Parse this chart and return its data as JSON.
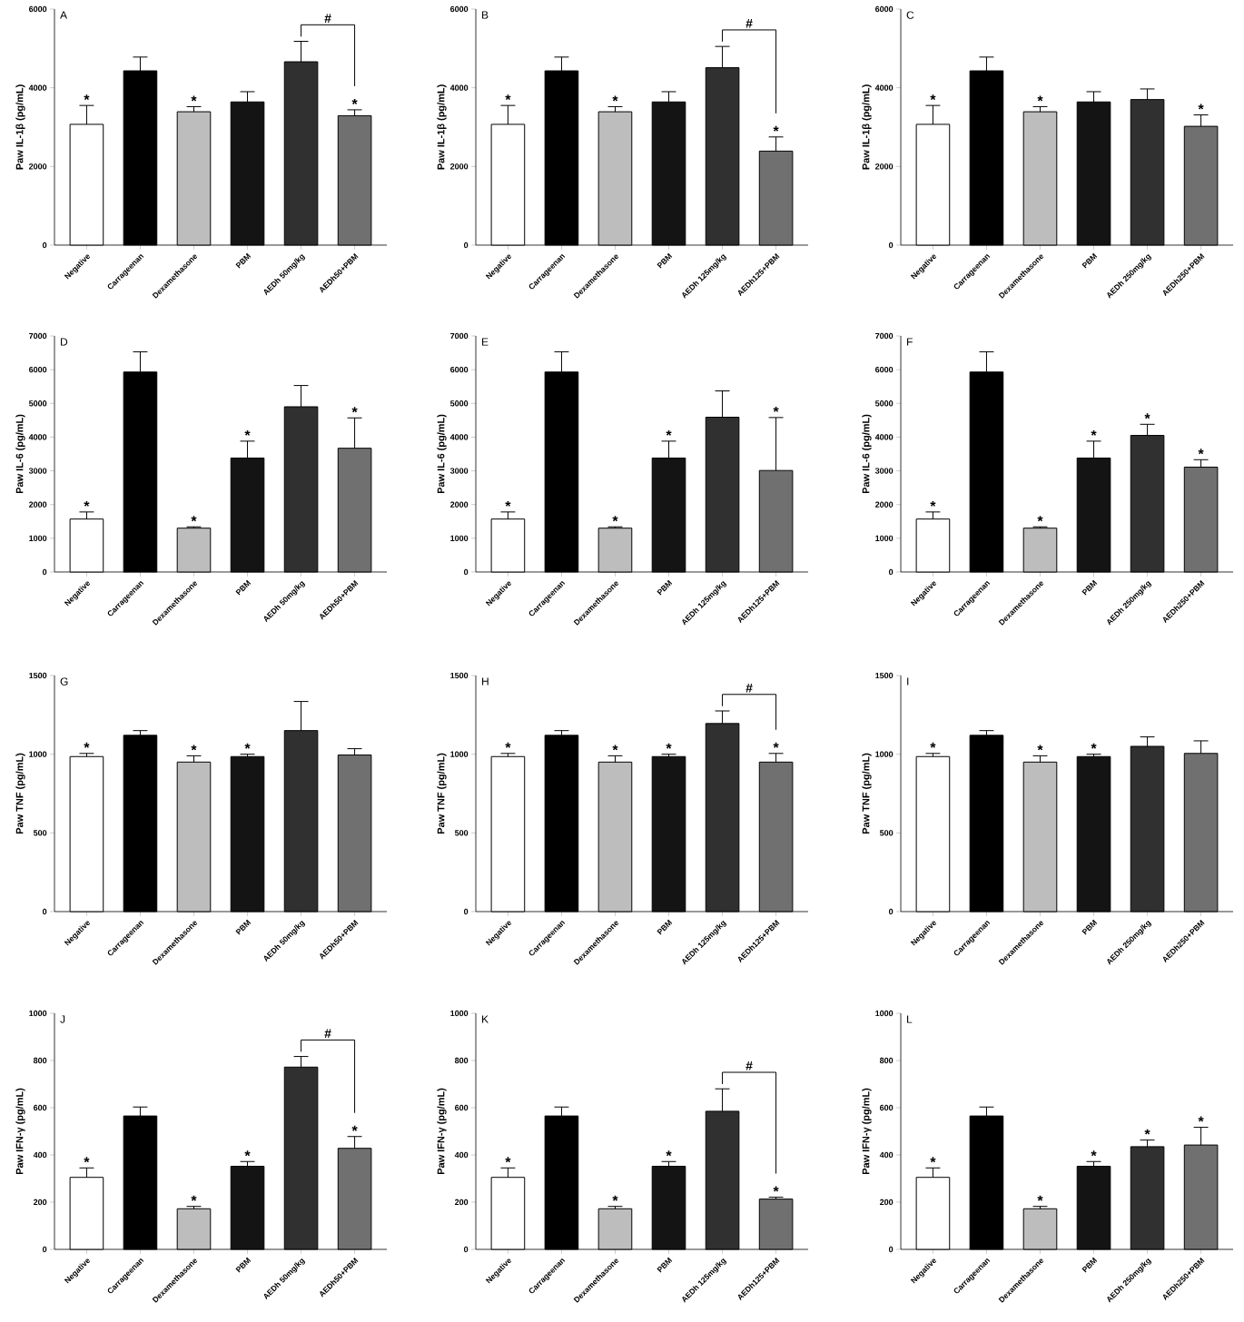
{
  "chart_data": [
    {
      "type": "bar",
      "title": "A",
      "ylabel": "Paw IL-1β (pg/mL)",
      "categories": [
        "Negative",
        "Carrageenan",
        "Dexamethasone",
        "PBM",
        "AEDh 50mg/kg",
        "AEDh50+PBM"
      ],
      "values": [
        3070,
        4430,
        3390,
        3640,
        4660,
        3290
      ],
      "errors": [
        480,
        350,
        130,
        260,
        520,
        150
      ],
      "colors": [
        "#ffffff",
        "#000000",
        "#bdbdbd",
        "#141414",
        "#303030",
        "#707070"
      ],
      "ylim": [
        0,
        6000
      ],
      "yticks": [
        0,
        2000,
        4000,
        6000
      ],
      "annotations": [
        {
          "text": "*",
          "x": "Negative",
          "y": 3550
        },
        {
          "text": "*",
          "x": "Dexamethasone",
          "y": 3520
        },
        {
          "text": "*",
          "x": "AEDh50+PBM",
          "y": 3440
        },
        "#"
      ]
    },
    {
      "type": "bar",
      "title": "B",
      "ylabel": "Paw IL-1β (pg/mL)",
      "categories": [
        "Negative",
        "Carrageenan",
        "Dexamethasone",
        "PBM",
        "AEDh 125mg/kg",
        "AEDh125+PBM"
      ],
      "values": [
        3070,
        4430,
        3390,
        3640,
        4510,
        2390
      ],
      "errors": [
        480,
        350,
        130,
        260,
        540,
        360
      ],
      "colors": [
        "#ffffff",
        "#000000",
        "#bdbdbd",
        "#141414",
        "#303030",
        "#707070"
      ],
      "ylim": [
        0,
        6000
      ],
      "yticks": [
        0,
        2000,
        4000,
        6000
      ],
      "annotations": [
        {
          "text": "*",
          "x": "Negative",
          "y": 3550
        },
        {
          "text": "*",
          "x": "Dexamethasone",
          "y": 3520
        },
        {
          "text": "*",
          "x": "AEDh125+PBM",
          "y": 2750
        },
        "#"
      ]
    },
    {
      "type": "bar",
      "title": "C",
      "ylabel": "Paw IL-1β (pg/mL)",
      "categories": [
        "Negative",
        "Carrageenan",
        "Dexamethasone",
        "PBM",
        "AEDh 250mg/kg",
        "AEDh250+PBM"
      ],
      "values": [
        3070,
        4430,
        3390,
        3640,
        3700,
        3020
      ],
      "errors": [
        480,
        350,
        130,
        260,
        270,
        290
      ],
      "colors": [
        "#ffffff",
        "#000000",
        "#bdbdbd",
        "#141414",
        "#303030",
        "#707070"
      ],
      "ylim": [
        0,
        6000
      ],
      "yticks": [
        0,
        2000,
        4000,
        6000
      ],
      "annotations": [
        {
          "text": "*",
          "x": "Negative",
          "y": 3550
        },
        {
          "text": "*",
          "x": "Dexamethasone",
          "y": 3520
        },
        {
          "text": "*",
          "x": "AEDh250+PBM",
          "y": 3310
        }
      ]
    },
    {
      "type": "bar",
      "title": "D",
      "ylabel": "Paw IL-6 (pg/mL)",
      "categories": [
        "Negative",
        "Carrageenan",
        "Dexamethasone",
        "PBM",
        "AEDh 50mg/kg",
        "AEDh50+PBM"
      ],
      "values": [
        1570,
        5930,
        1300,
        3380,
        4900,
        3670
      ],
      "errors": [
        210,
        600,
        40,
        500,
        630,
        900
      ],
      "colors": [
        "#ffffff",
        "#000000",
        "#bdbdbd",
        "#141414",
        "#303030",
        "#707070"
      ],
      "ylim": [
        0,
        7000
      ],
      "yticks": [
        0,
        1000,
        2000,
        3000,
        4000,
        5000,
        6000,
        7000
      ],
      "annotations": [
        {
          "text": "*",
          "x": "Negative",
          "y": 1780
        },
        {
          "text": "*",
          "x": "Dexamethasone",
          "y": 1340
        },
        {
          "text": "*",
          "x": "PBM",
          "y": 3880
        },
        {
          "text": "*",
          "x": "AEDh50+PBM",
          "y": 4570
        }
      ]
    },
    {
      "type": "bar",
      "title": "E",
      "ylabel": "Paw IL-6 (pg/mL)",
      "categories": [
        "Negative",
        "Carrageenan",
        "Dexamethasone",
        "PBM",
        "AEDh 125mg/kg",
        "AEDh125+PBM"
      ],
      "values": [
        1570,
        5930,
        1300,
        3380,
        4590,
        3010
      ],
      "errors": [
        210,
        600,
        40,
        500,
        780,
        1570
      ],
      "colors": [
        "#ffffff",
        "#000000",
        "#bdbdbd",
        "#141414",
        "#303030",
        "#707070"
      ],
      "ylim": [
        0,
        7000
      ],
      "yticks": [
        0,
        1000,
        2000,
        3000,
        4000,
        5000,
        6000,
        7000
      ],
      "annotations": [
        {
          "text": "*",
          "x": "Negative",
          "y": 1780
        },
        {
          "text": "*",
          "x": "Dexamethasone",
          "y": 1340
        },
        {
          "text": "*",
          "x": "PBM",
          "y": 3880
        },
        {
          "text": "*",
          "x": "AEDh125+PBM",
          "y": 4580
        }
      ]
    },
    {
      "type": "bar",
      "title": "F",
      "ylabel": "Paw IL-6 (pg/mL)",
      "categories": [
        "Negative",
        "Carrageenan",
        "Dexamethasone",
        "PBM",
        "AEDh 250mg/kg",
        "AEDh250+PBM"
      ],
      "values": [
        1570,
        5930,
        1300,
        3380,
        4050,
        3110
      ],
      "errors": [
        210,
        600,
        40,
        500,
        330,
        220
      ],
      "colors": [
        "#ffffff",
        "#000000",
        "#bdbdbd",
        "#141414",
        "#303030",
        "#707070"
      ],
      "ylim": [
        0,
        7000
      ],
      "yticks": [
        0,
        1000,
        2000,
        3000,
        4000,
        5000,
        6000,
        7000
      ],
      "annotations": [
        {
          "text": "*",
          "x": "Negative",
          "y": 1780
        },
        {
          "text": "*",
          "x": "Dexamethasone",
          "y": 1340
        },
        {
          "text": "*",
          "x": "PBM",
          "y": 3880
        },
        {
          "text": "*",
          "x": "AEDh 250mg/kg",
          "y": 4380
        },
        {
          "text": "*",
          "x": "AEDh250+PBM",
          "y": 3330
        }
      ]
    },
    {
      "type": "bar",
      "title": "G",
      "ylabel": "Paw TNF (pg/mL)",
      "categories": [
        "Negative",
        "Carrageenan",
        "Dexamethasone",
        "PBM",
        "AEDh 50mg/kg",
        "AEDh50+PBM"
      ],
      "values": [
        985,
        1120,
        950,
        985,
        1150,
        995
      ],
      "errors": [
        20,
        30,
        40,
        15,
        185,
        40
      ],
      "colors": [
        "#ffffff",
        "#000000",
        "#bdbdbd",
        "#141414",
        "#303030",
        "#707070"
      ],
      "ylim": [
        0,
        1500
      ],
      "yticks": [
        0,
        500,
        1000,
        1500
      ],
      "annotations": [
        {
          "text": "*",
          "x": "Negative",
          "y": 1005
        },
        {
          "text": "*",
          "x": "Dexamethasone",
          "y": 990
        },
        {
          "text": "*",
          "x": "PBM",
          "y": 1000
        }
      ]
    },
    {
      "type": "bar",
      "title": "H",
      "ylabel": "Paw TNF (pg/mL)",
      "categories": [
        "Negative",
        "Carrageenan",
        "Dexamethasone",
        "PBM",
        "AEDh 125mg/kg",
        "AEDh125+PBM"
      ],
      "values": [
        985,
        1120,
        950,
        985,
        1195,
        950
      ],
      "errors": [
        20,
        30,
        40,
        15,
        80,
        55
      ],
      "colors": [
        "#ffffff",
        "#000000",
        "#bdbdbd",
        "#141414",
        "#303030",
        "#707070"
      ],
      "ylim": [
        0,
        1500
      ],
      "yticks": [
        0,
        500,
        1000,
        1500
      ],
      "annotations": [
        {
          "text": "*",
          "x": "Negative",
          "y": 1005
        },
        {
          "text": "*",
          "x": "Dexamethasone",
          "y": 990
        },
        {
          "text": "*",
          "x": "PBM",
          "y": 1000
        },
        {
          "text": "*",
          "x": "AEDh125+PBM",
          "y": 1005
        },
        "#"
      ]
    },
    {
      "type": "bar",
      "title": "I",
      "ylabel": "Paw TNF (pg/mL)",
      "categories": [
        "Negative",
        "Carrageenan",
        "Dexamethasone",
        "PBM",
        "AEDh 250mg/kg",
        "AEDh250+PBM"
      ],
      "values": [
        985,
        1120,
        950,
        985,
        1050,
        1005
      ],
      "errors": [
        20,
        30,
        40,
        15,
        60,
        80
      ],
      "colors": [
        "#ffffff",
        "#000000",
        "#bdbdbd",
        "#141414",
        "#303030",
        "#707070"
      ],
      "ylim": [
        0,
        1500
      ],
      "yticks": [
        0,
        500,
        1000,
        1500
      ],
      "annotations": [
        {
          "text": "*",
          "x": "Negative",
          "y": 1005
        },
        {
          "text": "*",
          "x": "Dexamethasone",
          "y": 990
        },
        {
          "text": "*",
          "x": "PBM",
          "y": 1000
        }
      ]
    },
    {
      "type": "bar",
      "title": "J",
      "ylabel": "Paw IFN-γ (pg/mL)",
      "categories": [
        "Negative",
        "Carrageenan",
        "Dexamethasone",
        "PBM",
        "AEDh 50mg/kg",
        "AEDh50+PBM"
      ],
      "values": [
        305,
        565,
        172,
        352,
        772,
        428
      ],
      "errors": [
        40,
        38,
        10,
        20,
        45,
        50
      ],
      "colors": [
        "#ffffff",
        "#000000",
        "#bdbdbd",
        "#141414",
        "#303030",
        "#707070"
      ],
      "ylim": [
        0,
        1000
      ],
      "yticks": [
        0,
        200,
        400,
        600,
        800,
        1000
      ],
      "annotations": [
        {
          "text": "*",
          "x": "Negative",
          "y": 345
        },
        {
          "text": "*",
          "x": "Dexamethasone",
          "y": 182
        },
        {
          "text": "*",
          "x": "PBM",
          "y": 372
        },
        {
          "text": "*",
          "x": "AEDh50+PBM",
          "y": 478
        },
        "#"
      ]
    },
    {
      "type": "bar",
      "title": "K",
      "ylabel": "Paw IFN-γ (pg/mL)",
      "categories": [
        "Negative",
        "Carrageenan",
        "Dexamethasone",
        "PBM",
        "AEDh 125mg/kg",
        "AEDh125+PBM"
      ],
      "values": [
        305,
        565,
        172,
        352,
        585,
        213
      ],
      "errors": [
        40,
        38,
        10,
        20,
        95,
        8
      ],
      "colors": [
        "#ffffff",
        "#000000",
        "#bdbdbd",
        "#141414",
        "#303030",
        "#707070"
      ],
      "ylim": [
        0,
        1000
      ],
      "yticks": [
        0,
        200,
        400,
        600,
        800,
        1000
      ],
      "annotations": [
        {
          "text": "*",
          "x": "Negative",
          "y": 345
        },
        {
          "text": "*",
          "x": "Dexamethasone",
          "y": 182
        },
        {
          "text": "*",
          "x": "PBM",
          "y": 372
        },
        {
          "text": "*",
          "x": "AEDh125+PBM",
          "y": 221
        },
        "#"
      ]
    },
    {
      "type": "bar",
      "title": "L",
      "ylabel": "Paw IFN-γ (pg/mL)",
      "categories": [
        "Negative",
        "Carrageenan",
        "Dexamethasone",
        "PBM",
        "AEDh 250mg/kg",
        "AEDh250+PBM"
      ],
      "values": [
        305,
        565,
        172,
        352,
        435,
        442
      ],
      "errors": [
        40,
        38,
        10,
        20,
        28,
        75
      ],
      "colors": [
        "#ffffff",
        "#000000",
        "#bdbdbd",
        "#141414",
        "#303030",
        "#707070"
      ],
      "ylim": [
        0,
        1000
      ],
      "yticks": [
        0,
        200,
        400,
        600,
        800,
        1000
      ],
      "annotations": [
        {
          "text": "*",
          "x": "Negative",
          "y": 345
        },
        {
          "text": "*",
          "x": "Dexamethasone",
          "y": 182
        },
        {
          "text": "*",
          "x": "PBM",
          "y": 372
        },
        {
          "text": "*",
          "x": "AEDh 250mg/kg",
          "y": 463
        },
        {
          "text": "*",
          "x": "AEDh250+PBM",
          "y": 517
        }
      ]
    }
  ]
}
